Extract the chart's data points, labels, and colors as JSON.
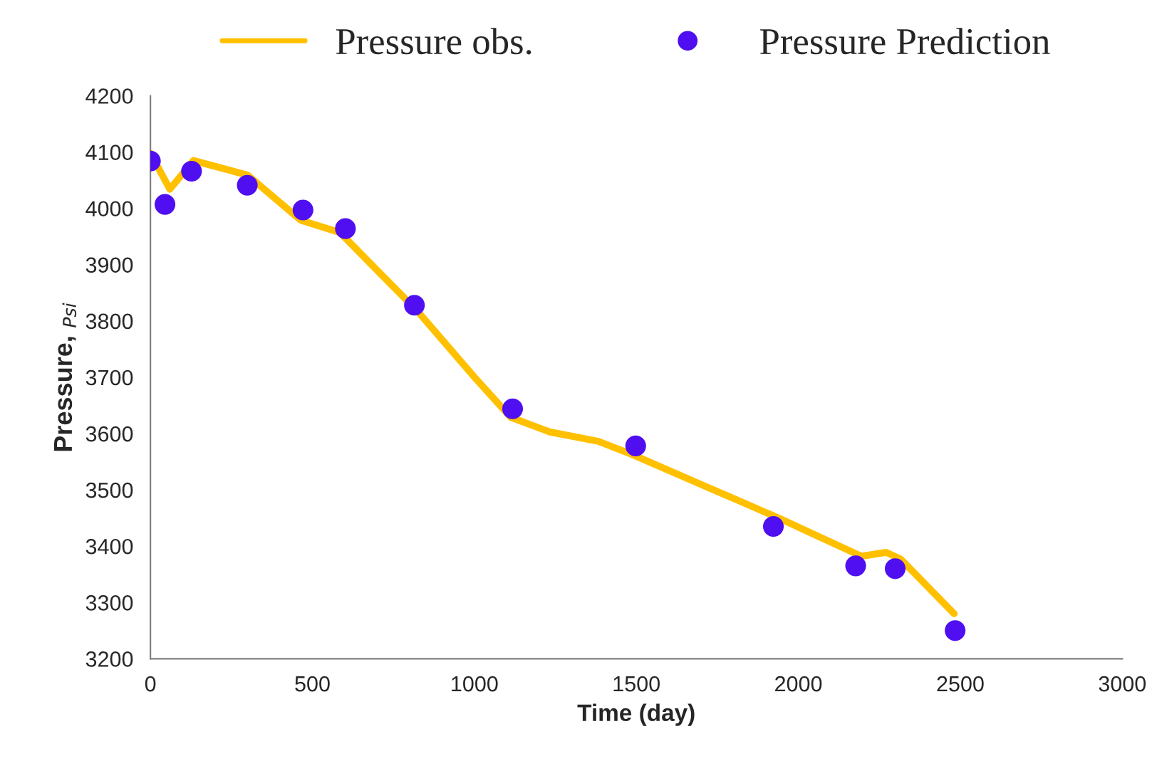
{
  "chart_data": {
    "type": "line",
    "xlabel": "Time (day)",
    "ylabel": "Pressure, $_{Psi}$",
    "xlim": [
      0,
      3000
    ],
    "xticks": [
      0,
      500,
      1000,
      1500,
      2000,
      2500,
      3000
    ],
    "ylim": [
      3200,
      4200
    ],
    "yticks": [
      3200,
      3300,
      3400,
      3500,
      3600,
      3700,
      3800,
      3900,
      4000,
      4100,
      4200
    ],
    "grid": false,
    "legend": "top",
    "series": [
      {
        "name": "Pressure obs.",
        "color": "#ffc000",
        "marker": "none",
        "line_style": "solid",
        "x": [
          0,
          60,
          133,
          300,
          464,
          585,
          825,
          1005,
          1112,
          1232,
          1383,
          1486,
          1939,
          2195,
          2271,
          2316,
          2481
        ],
        "values": [
          4098,
          4034,
          4085,
          4059,
          3979,
          3957,
          3817,
          3697,
          3629,
          3603,
          3586,
          3563,
          3450,
          3382,
          3389,
          3377,
          3280
        ]
      },
      {
        "name": "Pressure Prediction",
        "type": "scatter",
        "color": "#4f0ff0",
        "marker": "circle",
        "x": [
          0,
          45,
          127,
          299,
          471,
          602,
          815,
          1118,
          1498,
          1923,
          2177,
          2299,
          2484
        ],
        "values": [
          4084,
          4007,
          4066,
          4041,
          3997,
          3964,
          3828,
          3644,
          3578,
          3435,
          3365,
          3360,
          3250
        ]
      }
    ]
  }
}
